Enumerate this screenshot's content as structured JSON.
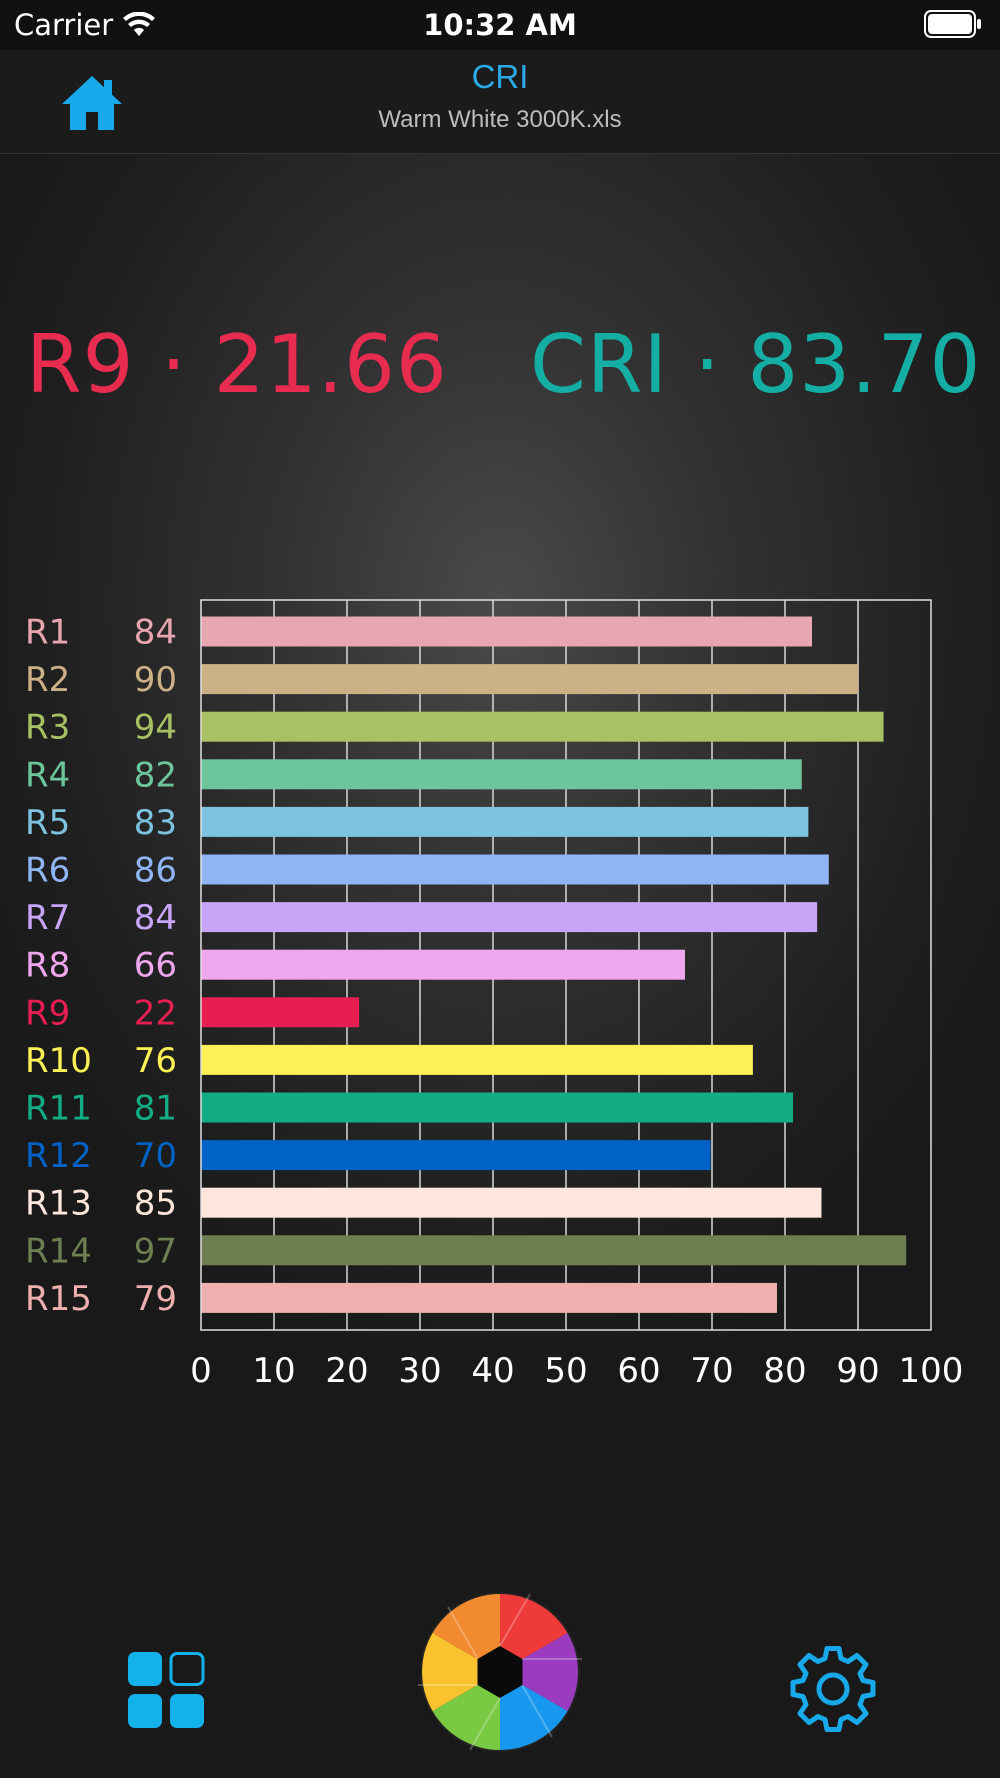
{
  "status_bar": {
    "carrier": "Carrier",
    "time": "10:32 AM"
  },
  "nav": {
    "title": "CRI",
    "subtitle": "Warm White 3000K.xls",
    "home_icon": "home-icon"
  },
  "summary": {
    "r9_label": "R9",
    "separator": "·",
    "r9_value": "21.66",
    "cri_label": "CRI",
    "cri_value": "83.70",
    "r9_color": "#e72c50",
    "cri_color": "#15aea5"
  },
  "chart_data": {
    "type": "bar",
    "orientation": "horizontal",
    "categories": [
      "R1",
      "R2",
      "R3",
      "R4",
      "R5",
      "R6",
      "R7",
      "R8",
      "R9",
      "R10",
      "R11",
      "R12",
      "R13",
      "R14",
      "R15"
    ],
    "values": [
      84,
      90,
      94,
      82,
      83,
      86,
      84,
      66,
      22,
      76,
      81,
      70,
      85,
      97,
      79
    ],
    "exact_values": [
      83.7,
      90,
      93.5,
      82.3,
      83.2,
      86,
      84.4,
      66.3,
      21.66,
      75.6,
      81.1,
      69.8,
      85,
      96.6,
      78.9
    ],
    "colors": [
      "#e8a6b1",
      "#cdb186",
      "#a8c162",
      "#6dc59c",
      "#7dc2df",
      "#8fb5f5",
      "#c8a5f7",
      "#eea7ec",
      "#e71e50",
      "#fdf155",
      "#12ac85",
      "#0062c4",
      "#fde6db",
      "#6d7e51",
      "#efafaf"
    ],
    "xlim": [
      0,
      100
    ],
    "xticks": [
      0,
      10,
      20,
      30,
      40,
      50,
      60,
      70,
      80,
      90,
      100
    ],
    "grid": true,
    "title": "",
    "xlabel": "",
    "ylabel": ""
  },
  "tab_bar": {
    "left_icon": "grid-icon",
    "center_icon": "camera-shutter-icon",
    "right_icon": "gear-icon"
  }
}
